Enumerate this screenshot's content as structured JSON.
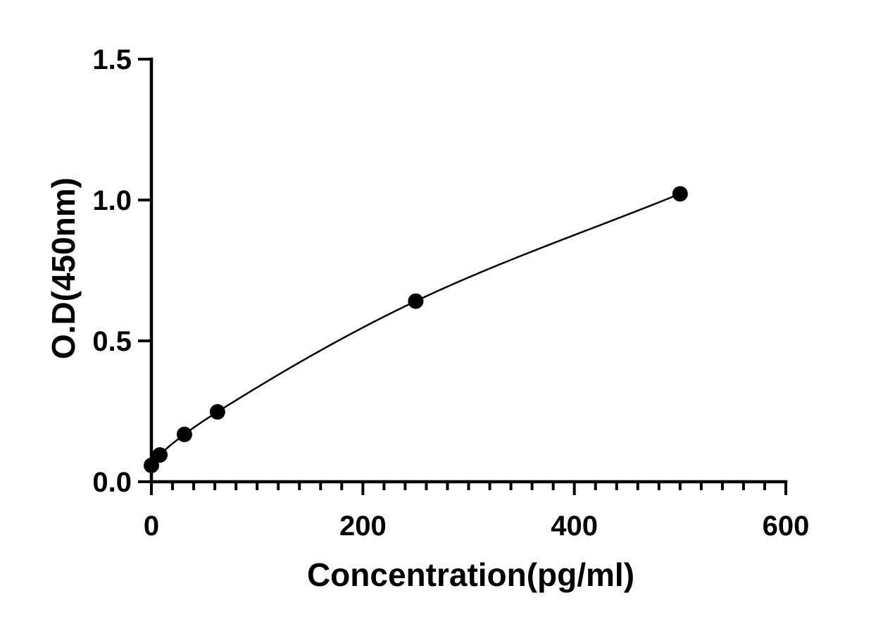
{
  "chart_data": {
    "type": "scatter",
    "xlabel": "Concentration(pg/ml)",
    "ylabel": "O.D(450nm)",
    "xlim": [
      0,
      600
    ],
    "ylim": [
      0,
      1.5
    ],
    "x_ticks": [
      0,
      200,
      400,
      600
    ],
    "x_tick_labels": [
      "0",
      "200",
      "400",
      "600"
    ],
    "x_minor_step": 20,
    "y_ticks": [
      0.0,
      0.5,
      1.0,
      1.5
    ],
    "y_tick_labels": [
      "0.0",
      "0.5",
      "1.0",
      "1.5"
    ],
    "grid": false,
    "legend": "none",
    "points": [
      {
        "x": 0,
        "y": 0.058
      },
      {
        "x": 8,
        "y": 0.095
      },
      {
        "x": 31.25,
        "y": 0.168
      },
      {
        "x": 62.5,
        "y": 0.248
      },
      {
        "x": 250,
        "y": 0.641
      },
      {
        "x": 500,
        "y": 1.022
      }
    ],
    "fit_curve": {
      "x_range": [
        0,
        500
      ]
    },
    "colors": {
      "axis": "#000000",
      "points": "#000000",
      "curve": "#000000"
    }
  }
}
